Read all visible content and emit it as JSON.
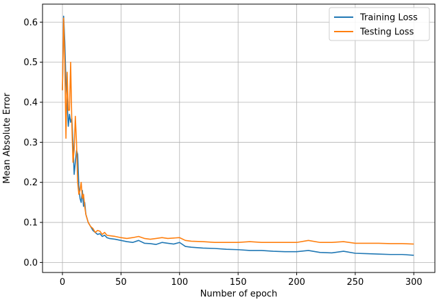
{
  "chart_data": {
    "type": "line",
    "title": "",
    "xlabel": "Number of epoch",
    "ylabel": "Mean Absolute Error",
    "xlim": [
      -17,
      318
    ],
    "ylim": [
      -0.025,
      0.645
    ],
    "xticks": [
      0,
      50,
      100,
      150,
      200,
      250,
      300
    ],
    "yticks": [
      0.0,
      0.1,
      0.2,
      0.3,
      0.4,
      0.5,
      0.6
    ],
    "grid": true,
    "legend_position": "top-right",
    "series": [
      {
        "name": "Training Loss",
        "color": "#1f77b4",
        "x": [
          0,
          1,
          2,
          3,
          4,
          5,
          6,
          7,
          8,
          9,
          10,
          11,
          12,
          13,
          14,
          15,
          16,
          17,
          18,
          19,
          20,
          22,
          24,
          26,
          28,
          30,
          32,
          34,
          36,
          38,
          40,
          45,
          50,
          55,
          60,
          65,
          70,
          75,
          80,
          85,
          90,
          95,
          100,
          105,
          110,
          120,
          130,
          140,
          150,
          160,
          170,
          180,
          190,
          200,
          210,
          220,
          230,
          240,
          250,
          260,
          270,
          280,
          290,
          300
        ],
        "y": [
          0.43,
          0.615,
          0.55,
          0.45,
          0.4,
          0.34,
          0.37,
          0.35,
          0.36,
          0.3,
          0.22,
          0.25,
          0.28,
          0.27,
          0.19,
          0.16,
          0.15,
          0.18,
          0.14,
          0.15,
          0.12,
          0.1,
          0.09,
          0.08,
          0.075,
          0.07,
          0.072,
          0.065,
          0.068,
          0.062,
          0.06,
          0.058,
          0.055,
          0.052,
          0.05,
          0.055,
          0.048,
          0.047,
          0.045,
          0.05,
          0.048,
          0.046,
          0.05,
          0.04,
          0.038,
          0.036,
          0.035,
          0.033,
          0.032,
          0.03,
          0.03,
          0.028,
          0.027,
          0.027,
          0.03,
          0.025,
          0.024,
          0.028,
          0.023,
          0.022,
          0.021,
          0.02,
          0.02,
          0.018
        ]
      },
      {
        "name": "Testing Loss",
        "color": "#ff7f0e",
        "x": [
          0,
          1,
          2,
          3,
          4,
          5,
          6,
          7,
          8,
          9,
          10,
          11,
          12,
          13,
          14,
          15,
          16,
          17,
          18,
          19,
          20,
          22,
          24,
          26,
          28,
          30,
          32,
          34,
          36,
          38,
          40,
          45,
          50,
          55,
          60,
          65,
          70,
          75,
          80,
          85,
          90,
          95,
          100,
          105,
          110,
          120,
          130,
          140,
          150,
          160,
          170,
          180,
          190,
          200,
          210,
          220,
          230,
          240,
          250,
          260,
          270,
          280,
          290,
          300
        ],
        "y": [
          0.43,
          0.61,
          0.5,
          0.31,
          0.475,
          0.38,
          0.38,
          0.5,
          0.35,
          0.25,
          0.28,
          0.365,
          0.3,
          0.2,
          0.17,
          0.18,
          0.2,
          0.16,
          0.17,
          0.14,
          0.12,
          0.1,
          0.09,
          0.085,
          0.075,
          0.08,
          0.078,
          0.07,
          0.075,
          0.068,
          0.067,
          0.065,
          0.062,
          0.06,
          0.062,
          0.065,
          0.06,
          0.058,
          0.06,
          0.062,
          0.06,
          0.061,
          0.062,
          0.055,
          0.053,
          0.052,
          0.05,
          0.05,
          0.05,
          0.052,
          0.05,
          0.05,
          0.05,
          0.05,
          0.055,
          0.05,
          0.05,
          0.052,
          0.048,
          0.048,
          0.048,
          0.047,
          0.047,
          0.046
        ]
      }
    ]
  }
}
